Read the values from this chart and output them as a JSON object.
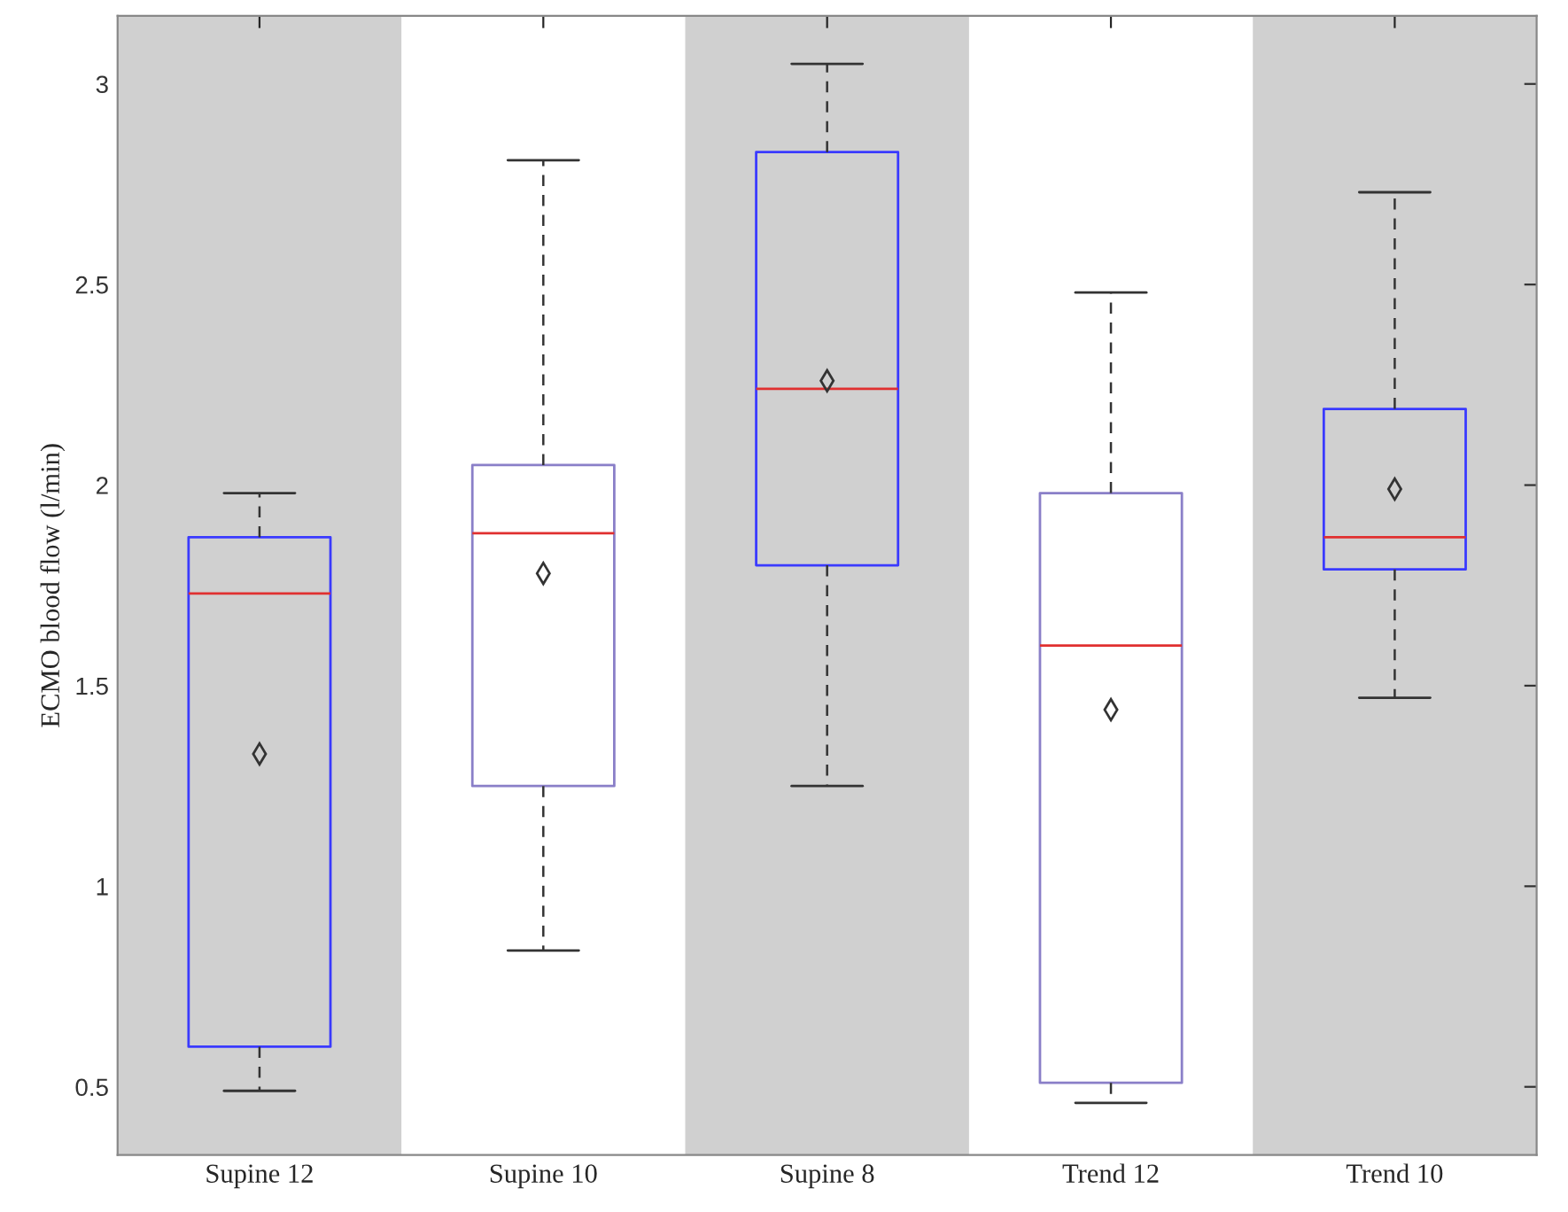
{
  "chart_data": {
    "type": "box",
    "ylabel": "ECMO blood flow (l/min)",
    "categories": [
      "Supine 12",
      "Supine 10",
      "Supine 8",
      "Trend 12",
      "Trend 10"
    ],
    "colors": [
      "#3a3aff",
      "#8a7fc8",
      "#3a3aff",
      "#8a7fc8",
      "#3a3aff"
    ],
    "boxes": [
      {
        "low": 0.49,
        "q1": 0.6,
        "median": 1.73,
        "q3": 1.87,
        "high": 1.98,
        "mean": 1.33
      },
      {
        "low": 0.84,
        "q1": 1.25,
        "median": 1.88,
        "q3": 2.05,
        "high": 2.81,
        "mean": 1.78
      },
      {
        "low": 1.25,
        "q1": 1.8,
        "median": 2.24,
        "q3": 2.83,
        "high": 3.05,
        "mean": 2.26
      },
      {
        "low": 0.46,
        "q1": 0.51,
        "median": 1.6,
        "q3": 1.98,
        "high": 2.48,
        "mean": 1.44
      },
      {
        "low": 1.47,
        "q1": 1.79,
        "median": 1.87,
        "q3": 2.19,
        "high": 2.73,
        "mean": 1.99
      }
    ],
    "bands": [
      {
        "axis": "x",
        "from": "Supine 12",
        "to": "Supine 12",
        "color": "#d0d0d0"
      },
      {
        "axis": "x",
        "from": "Supine 8",
        "to": "Supine 8",
        "color": "#d0d0d0"
      },
      {
        "axis": "x",
        "from": "Trend 10",
        "to": "Trend 10",
        "color": "#d0d0d0"
      }
    ],
    "ylim": [
      0.33,
      3.17
    ],
    "yticks": [
      0.5,
      1,
      1.5,
      2,
      2.5,
      3
    ],
    "marker": "diamond",
    "grid": false
  }
}
